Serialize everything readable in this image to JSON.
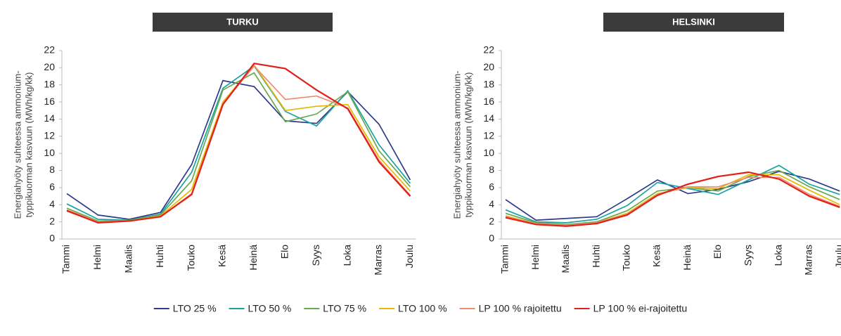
{
  "chart_data": [
    {
      "type": "line",
      "title": "TURKU",
      "ylabel": [
        "Energiahyöty suhteessa ammonium-",
        "typpikuorman kasvuun (MWh/kg/kk)"
      ],
      "categories": [
        "Tammi",
        "Helmi",
        "Maalis",
        "Huhti",
        "Touko",
        "Kesä",
        "Heinä",
        "Elo",
        "Syys",
        "Loka",
        "Marras",
        "Joulu"
      ],
      "ylim": [
        0,
        22
      ],
      "yticks": [
        0,
        2,
        4,
        6,
        8,
        10,
        12,
        14,
        16,
        18,
        20,
        22
      ],
      "series": [
        {
          "name": "LTO 25 %",
          "color": "#2e3a8c",
          "values": [
            5.3,
            2.8,
            2.3,
            3.1,
            8.7,
            18.5,
            17.8,
            13.8,
            13.5,
            17.2,
            13.4,
            6.9
          ]
        },
        {
          "name": "LTO 50 %",
          "color": "#1aa3a0",
          "values": [
            4.1,
            2.3,
            2.2,
            2.9,
            7.8,
            17.6,
            20.2,
            14.9,
            13.2,
            17.3,
            11.0,
            6.5
          ]
        },
        {
          "name": "LTO 75 %",
          "color": "#6aa84f",
          "values": [
            3.6,
            2.1,
            2.2,
            2.8,
            6.8,
            17.4,
            19.4,
            13.7,
            14.6,
            17.2,
            10.3,
            6.1
          ]
        },
        {
          "name": "LTO 100 %",
          "color": "#e6b800",
          "values": [
            3.4,
            2.0,
            2.1,
            2.7,
            5.8,
            16.0,
            20.3,
            15.0,
            15.5,
            15.7,
            9.6,
            5.6
          ]
        },
        {
          "name": "LP 100 % rajoitettu",
          "color": "#f08c6e",
          "values": [
            3.4,
            2.0,
            2.1,
            2.6,
            5.3,
            15.8,
            20.2,
            16.3,
            16.7,
            15.3,
            9.2,
            5.1
          ]
        },
        {
          "name": "LP 100 % ei-rajoitettu",
          "color": "#e0201b",
          "values": [
            3.3,
            1.9,
            2.1,
            2.6,
            5.2,
            15.7,
            20.5,
            19.9,
            17.4,
            15.2,
            9.0,
            5.0
          ]
        }
      ]
    },
    {
      "type": "line",
      "title": "HELSINKI",
      "ylabel": [
        "Energiahyöty suhteessa ammonium-",
        "typpikuorman kasvuun (MWh/kg/kk)"
      ],
      "categories": [
        "Tammi",
        "Helmi",
        "Maalis",
        "Huhti",
        "Touko",
        "Kesä",
        "Heinä",
        "Elo",
        "Syys",
        "Loka",
        "Marras",
        "Joulu"
      ],
      "ylim": [
        0,
        22
      ],
      "yticks": [
        0,
        2,
        4,
        6,
        8,
        10,
        12,
        14,
        16,
        18,
        20,
        22
      ],
      "series": [
        {
          "color": "#2e3a8c",
          "values": [
            4.6,
            2.2,
            2.4,
            2.6,
            4.7,
            6.9,
            5.3,
            5.8,
            6.7,
            7.9,
            7.0,
            5.6
          ]
        },
        {
          "color": "#1aa3a0",
          "values": [
            3.4,
            2.0,
            1.9,
            2.3,
            3.9,
            6.6,
            5.9,
            5.2,
            6.9,
            8.6,
            6.4,
            5.2
          ]
        },
        {
          "color": "#6aa84f",
          "values": [
            3.0,
            1.9,
            1.7,
            2.0,
            3.3,
            5.6,
            6.0,
            5.6,
            7.3,
            8.0,
            6.1,
            4.6
          ]
        },
        {
          "color": "#e6b800",
          "values": [
            2.7,
            1.8,
            1.6,
            1.9,
            3.0,
            5.3,
            6.0,
            5.9,
            7.5,
            7.5,
            5.7,
            4.0
          ]
        },
        {
          "color": "#f08c6e",
          "values": [
            2.6,
            1.8,
            1.6,
            1.9,
            2.9,
            5.2,
            6.1,
            6.1,
            7.2,
            7.2,
            5.2,
            3.8
          ]
        },
        {
          "color": "#e0201b",
          "values": [
            2.5,
            1.7,
            1.5,
            1.8,
            2.8,
            5.1,
            6.4,
            7.3,
            7.8,
            7.0,
            5.0,
            3.7
          ]
        }
      ]
    }
  ]
}
